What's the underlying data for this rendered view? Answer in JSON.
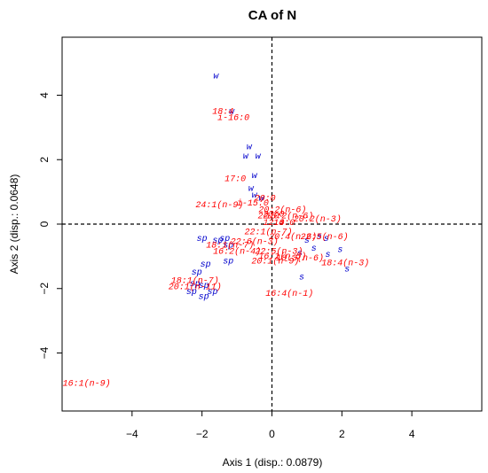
{
  "chart_data": {
    "type": "scatter",
    "title": "CA of N",
    "xlabel": "Axis 1 (disp.: 0.0879)",
    "ylabel": "Axis 2 (disp.: 0.0648)",
    "xlim": [
      -6,
      6
    ],
    "ylim": [
      -5.8,
      5.8
    ],
    "xticks": [
      -4,
      -2,
      0,
      2,
      4
    ],
    "yticks": [
      -4,
      -2,
      0,
      2,
      4
    ],
    "reference_lines": {
      "x": 0,
      "y": 0,
      "style": "dashed"
    },
    "series": [
      {
        "name": "",
        "color": "#0000cc",
        "points": [
          {
            "label": "w",
            "x": -1.6,
            "y": 4.6
          },
          {
            "label": "w",
            "x": -1.15,
            "y": 3.5
          },
          {
            "label": "w",
            "x": -0.65,
            "y": 2.4
          },
          {
            "label": "w",
            "x": -0.75,
            "y": 2.1
          },
          {
            "label": "w",
            "x": -0.4,
            "y": 2.1
          },
          {
            "label": "w",
            "x": -0.5,
            "y": 1.5
          },
          {
            "label": "w",
            "x": -0.6,
            "y": 1.1
          },
          {
            "label": "w",
            "x": -0.5,
            "y": 0.9
          },
          {
            "label": "w",
            "x": -0.3,
            "y": 0.8
          },
          {
            "label": "sp",
            "x": -2.0,
            "y": -0.45
          },
          {
            "label": "sp",
            "x": -1.55,
            "y": -0.5
          },
          {
            "label": "sp",
            "x": -1.35,
            "y": -0.45
          },
          {
            "label": "sp",
            "x": -1.25,
            "y": -0.65
          },
          {
            "label": "sp",
            "x": -1.9,
            "y": -1.25
          },
          {
            "label": "sp",
            "x": -1.25,
            "y": -1.15
          },
          {
            "label": "sp",
            "x": -2.15,
            "y": -1.5
          },
          {
            "label": "sp",
            "x": -2.2,
            "y": -1.85
          },
          {
            "label": "sp",
            "x": -1.95,
            "y": -1.9
          },
          {
            "label": "sp",
            "x": -1.7,
            "y": -2.1
          },
          {
            "label": "sp",
            "x": -2.3,
            "y": -2.1
          },
          {
            "label": "sp",
            "x": -1.95,
            "y": -2.25
          },
          {
            "label": "s",
            "x": 1.0,
            "y": -0.5
          },
          {
            "label": "s",
            "x": 1.35,
            "y": -0.4
          },
          {
            "label": "s",
            "x": 1.55,
            "y": -0.45
          },
          {
            "label": "s",
            "x": 1.2,
            "y": -0.75
          },
          {
            "label": "s",
            "x": 0.8,
            "y": -0.9
          },
          {
            "label": "s",
            "x": 1.6,
            "y": -0.95
          },
          {
            "label": "s",
            "x": 1.95,
            "y": -0.8
          },
          {
            "label": "s",
            "x": 2.15,
            "y": -1.4
          },
          {
            "label": "s",
            "x": 0.85,
            "y": -1.65
          }
        ]
      },
      {
        "name": "",
        "color": "#ff0000",
        "points": [
          {
            "label": "18:4",
            "x": -1.4,
            "y": 3.5
          },
          {
            "label": "i-16:0",
            "x": -1.1,
            "y": 3.3
          },
          {
            "label": "17:0",
            "x": -1.05,
            "y": 1.4
          },
          {
            "label": "24:1(n-9)",
            "x": -1.5,
            "y": 0.6
          },
          {
            "label": "i-15:0",
            "x": -0.55,
            "y": 0.65
          },
          {
            "label": "20:0",
            "x": -0.2,
            "y": 0.8
          },
          {
            "label": "20:2(n-6)",
            "x": 0.3,
            "y": 0.45
          },
          {
            "label": "22:0",
            "x": -0.1,
            "y": 0.25
          },
          {
            "label": "23:0",
            "x": 0.05,
            "y": 0.3
          },
          {
            "label": "18:2(n-6)",
            "x": 0.5,
            "y": 0.25
          },
          {
            "label": "12:0",
            "x": 0.05,
            "y": 0.05
          },
          {
            "label": "14:0",
            "x": 0.35,
            "y": 0.05
          },
          {
            "label": "20:2(n-3)",
            "x": 1.3,
            "y": 0.15
          },
          {
            "label": "22:1(n-7)",
            "x": -0.1,
            "y": -0.25
          },
          {
            "label": "22:6(n-3)",
            "x": -0.5,
            "y": -0.55
          },
          {
            "label": "18:1(n-7)",
            "x": -1.2,
            "y": -0.65
          },
          {
            "label": "20:4(n-6)",
            "x": 0.6,
            "y": -0.4
          },
          {
            "label": "22:5(n-6)",
            "x": 1.5,
            "y": -0.4
          },
          {
            "label": "16:2(n-4)",
            "x": -1.0,
            "y": -0.85
          },
          {
            "label": "22:5(n-3)",
            "x": 0.2,
            "y": -0.85
          },
          {
            "label": "16:1(n-5)",
            "x": 0.3,
            "y": -1.0
          },
          {
            "label": "18:3(n-6)",
            "x": 0.8,
            "y": -1.05
          },
          {
            "label": "20:1(n-9)",
            "x": 0.1,
            "y": -1.15
          },
          {
            "label": "18:4(n-3)",
            "x": 2.1,
            "y": -1.2
          },
          {
            "label": "18:1(n-7)",
            "x": -2.2,
            "y": -1.75
          },
          {
            "label": "20:1(n-11)",
            "x": -2.2,
            "y": -1.95
          },
          {
            "label": "16:4(n-1)",
            "x": 0.5,
            "y": -2.15
          },
          {
            "label": "16:1(n-9)",
            "x": -5.3,
            "y": -4.95
          }
        ]
      }
    ]
  }
}
